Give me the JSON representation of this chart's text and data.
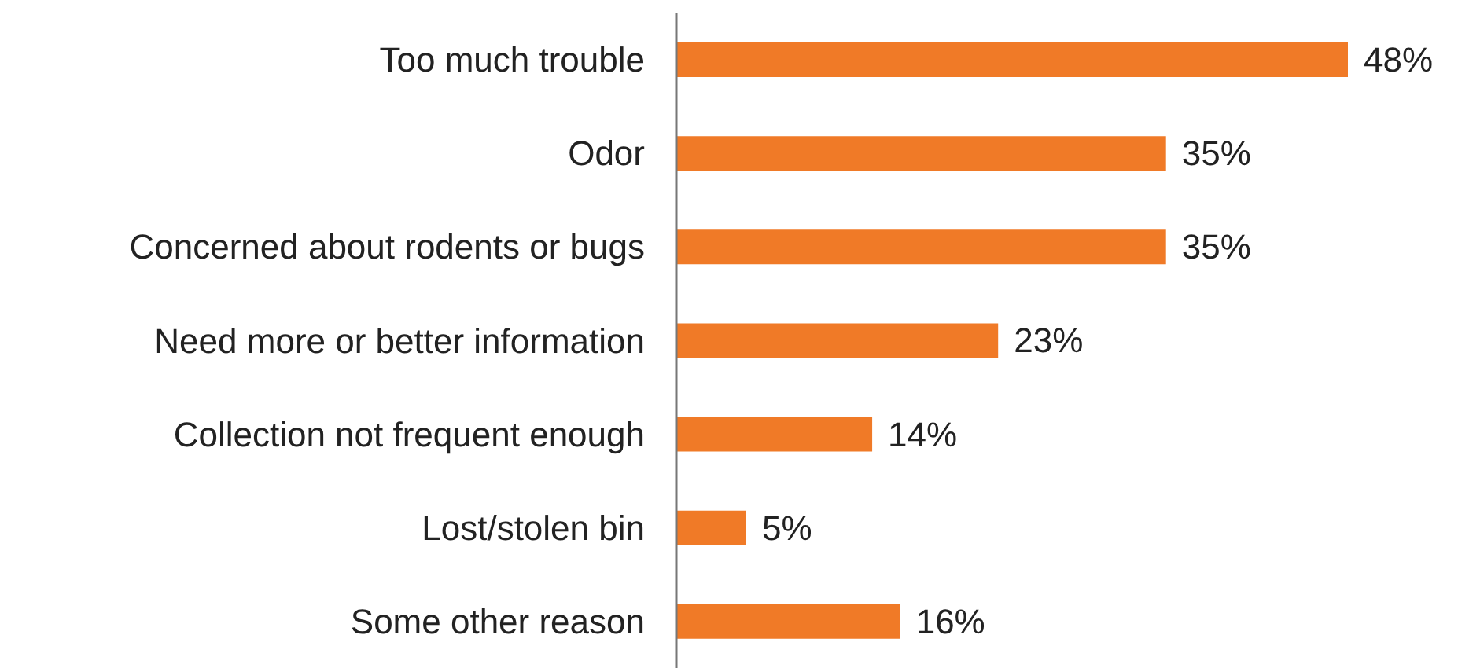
{
  "chart_data": {
    "type": "bar",
    "orientation": "horizontal",
    "categories": [
      "Too much trouble",
      "Odor",
      "Concerned about rodents or bugs",
      "Need more or better information",
      "Collection not frequent enough",
      "Lost/stolen bin",
      "Some other reason"
    ],
    "values": [
      48,
      35,
      35,
      23,
      14,
      5,
      16
    ],
    "value_labels": [
      "48%",
      "35%",
      "35%",
      "23%",
      "14%",
      "5%",
      "16%"
    ],
    "color": "#f07a27",
    "grid": false,
    "legend": false
  }
}
